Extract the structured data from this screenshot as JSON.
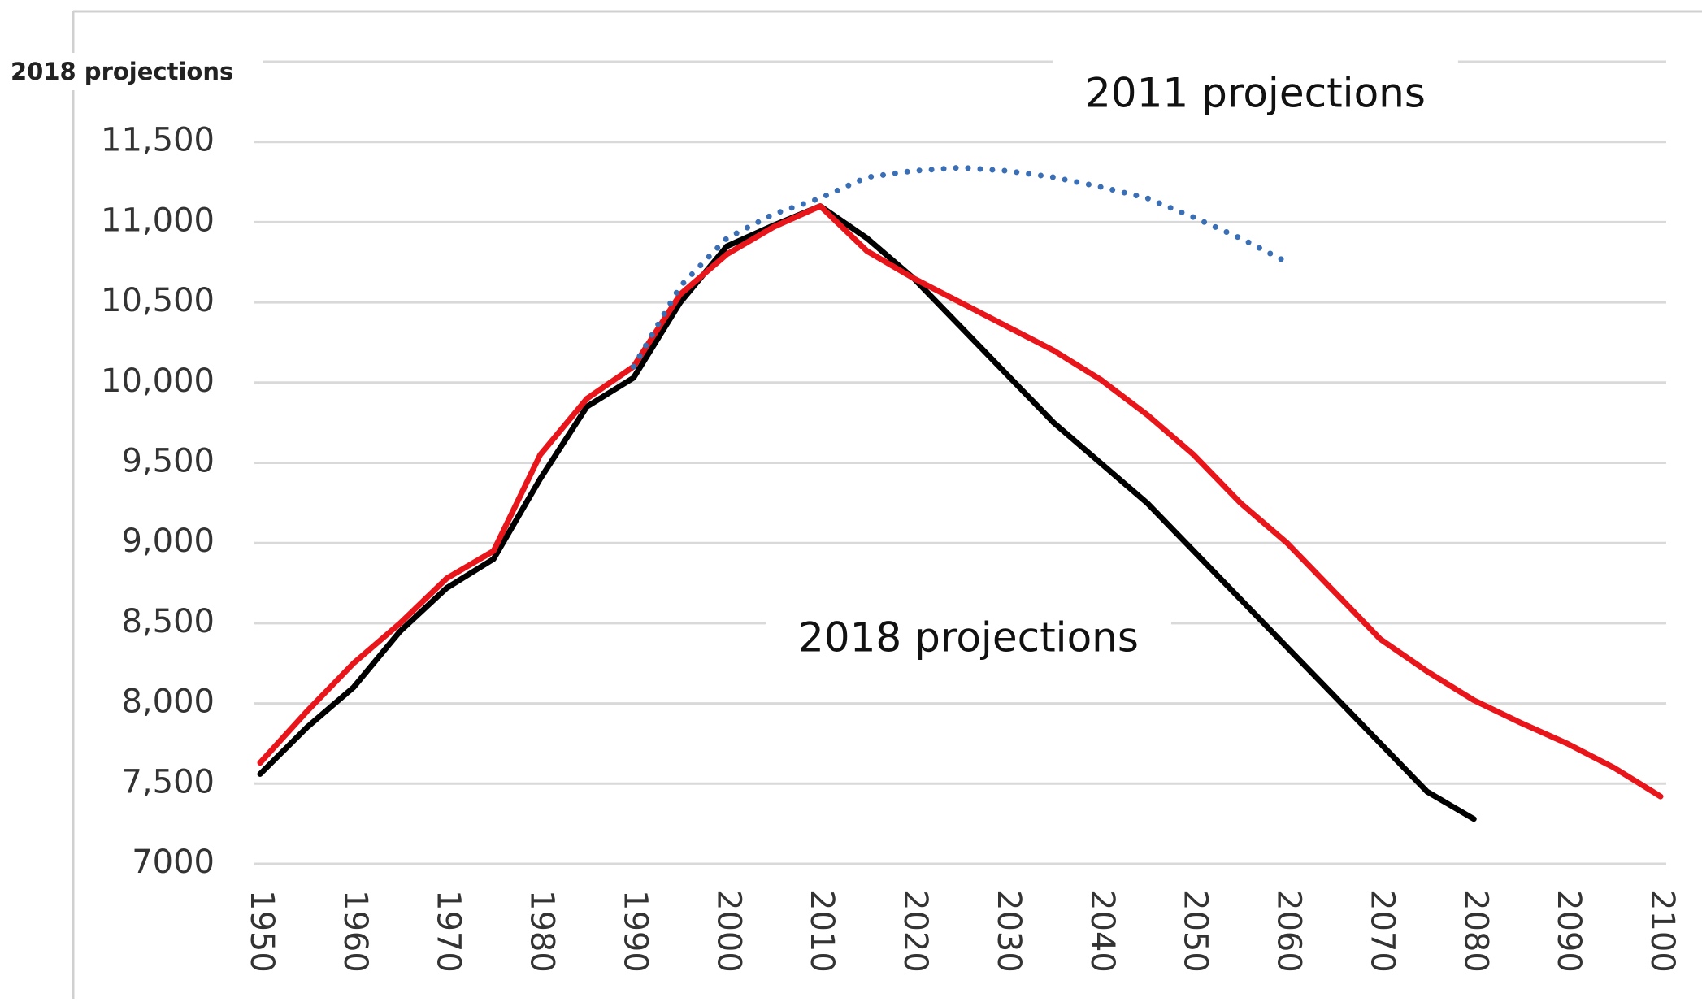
{
  "chart_data": {
    "type": "line",
    "y_axis_label": "2018 projections",
    "annotations": [
      "2011 projections",
      "2018 projections"
    ],
    "x": [
      1950,
      1955,
      1960,
      1965,
      1970,
      1975,
      1980,
      1985,
      1990,
      1995,
      2000,
      2005,
      2010,
      2015,
      2020,
      2025,
      2030,
      2035,
      2040,
      2045,
      2050,
      2055,
      2060,
      2065,
      2070,
      2075,
      2080,
      2085,
      2090,
      2095,
      2100
    ],
    "series": [
      {
        "color": "#000000",
        "style": "solid",
        "values": [
          7560,
          7850,
          8100,
          8450,
          8720,
          8900,
          9400,
          9850,
          10030,
          10500,
          10850,
          10980,
          11100,
          10900,
          10650,
          10350,
          10050,
          9750,
          9500,
          9250,
          8950,
          8650,
          8350,
          8050,
          7750,
          7450,
          7280,
          null,
          null,
          null,
          null
        ]
      },
      {
        "color": "#e8161b",
        "style": "solid",
        "values": [
          7630,
          7950,
          8250,
          8500,
          8780,
          8950,
          9550,
          9900,
          10100,
          10550,
          10800,
          10970,
          11100,
          10820,
          10650,
          10500,
          10350,
          10200,
          10020,
          9800,
          9550,
          9250,
          9000,
          8700,
          8400,
          8200,
          8020,
          7880,
          7750,
          7600,
          7420
        ]
      },
      {
        "color": "#3a6fb5",
        "style": "dotted",
        "values": [
          null,
          null,
          null,
          null,
          null,
          null,
          null,
          null,
          10100,
          10600,
          10900,
          11050,
          11150,
          11280,
          11320,
          11340,
          11320,
          11280,
          11220,
          11150,
          11030,
          10900,
          10750,
          null,
          null,
          null,
          null,
          null,
          null,
          null,
          null
        ]
      }
    ],
    "xlim": [
      1950,
      2100
    ],
    "xticks": [
      1950,
      1960,
      1970,
      1980,
      1990,
      2000,
      2010,
      2020,
      2030,
      2040,
      2050,
      2060,
      2070,
      2080,
      2090,
      2100
    ],
    "ylim": [
      7000,
      12000
    ],
    "yticks": [
      7000,
      {
        "value": 7500,
        "label": "7,500"
      },
      {
        "value": 8000,
        "label": "8,000"
      },
      {
        "value": 8500,
        "label": "8,500"
      },
      {
        "value": 9000,
        "label": "9,000"
      },
      {
        "value": 9500,
        "label": "9,500"
      },
      {
        "value": 10000,
        "label": "10,000"
      },
      {
        "value": 10500,
        "label": "10,500"
      },
      {
        "value": 11000,
        "label": "11,000"
      },
      {
        "value": 11500,
        "label": "11,500"
      }
    ],
    "grid": true
  }
}
